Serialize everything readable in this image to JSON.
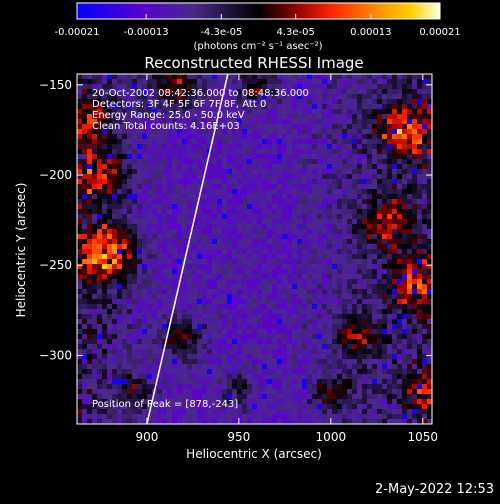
{
  "colorbar": {
    "ticks": [
      "-0.00021",
      "-0.00013",
      "-4.3e-05",
      "4.3e-05",
      "0.00013",
      "0.00021"
    ],
    "tick_values": [
      -0.00021,
      -0.00013,
      -4.3e-05,
      4.3e-05,
      0.00013,
      0.00021
    ],
    "range": [
      -0.00021,
      0.00021
    ],
    "units": "(photons cm⁻² s⁻¹ asec⁻²)",
    "colors": [
      "#0000ff",
      "#6e00c8",
      "#3a1a7a",
      "#000000",
      "#8b0000",
      "#ff2200",
      "#ff8800",
      "#ffcc00",
      "#ffffe0"
    ]
  },
  "chart_data": {
    "type": "heatmap",
    "title": "Reconstructed RHESSI Image",
    "xlabel": "Heliocentric X (arcsec)",
    "ylabel": "Heliocentric Y (arcsec)",
    "xlim": [
      862,
      1055
    ],
    "ylim": [
      -338,
      -144
    ],
    "xticks": [
      900,
      950,
      1000,
      1050
    ],
    "yticks": [
      -150,
      -200,
      -250,
      -300
    ],
    "annotations": [
      "20-Oct-2002 08:42:36.000 to 08:48:36.000",
      "Detectors: 3F 4F 5F 6F 7F 8F, Att 0",
      "Energy Range: 25.0 - 50.0 keV",
      "Clean     Total counts: 4.16E+03"
    ],
    "peak_label": "Position of Peak = [878,-243]",
    "peak": [
      878,
      -243
    ],
    "limb_line": [
      [
        900,
        -338
      ],
      [
        944,
        -144
      ]
    ]
  },
  "timestamp": "2-May-2022 12:53"
}
